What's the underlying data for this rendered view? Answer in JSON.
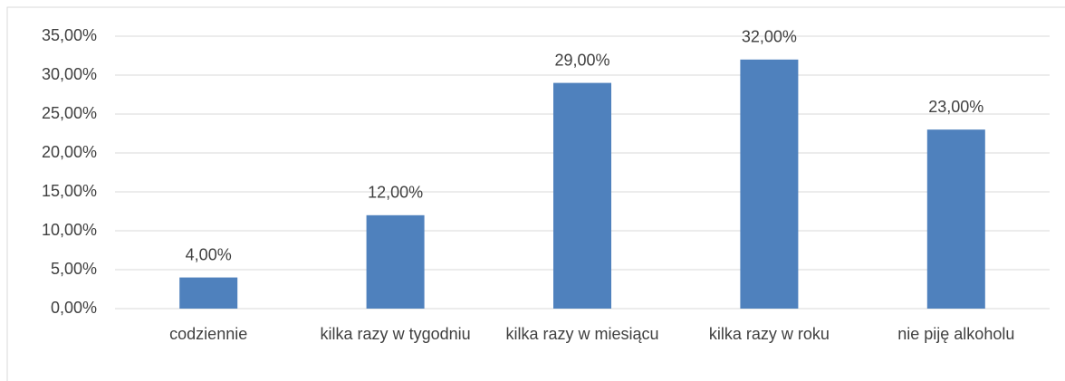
{
  "chart_data": {
    "type": "bar",
    "categories": [
      "codziennie",
      "kilka razy w tygodniu",
      "kilka razy w miesiącu",
      "kilka razy w roku",
      "nie piję alkoholu"
    ],
    "values": [
      4,
      12,
      29,
      32,
      23
    ],
    "value_labels": [
      "4,00%",
      "12,00%",
      "29,00%",
      "32,00%",
      "23,00%"
    ],
    "color": "#4f81bd",
    "ylim": [
      0,
      35
    ],
    "yticks": [
      {
        "value": 0,
        "label": "0,00%"
      },
      {
        "value": 5,
        "label": "5,00%"
      },
      {
        "value": 10,
        "label": "10,00%"
      },
      {
        "value": 15,
        "label": "15,00%"
      },
      {
        "value": 20,
        "label": "20,00%"
      },
      {
        "value": 25,
        "label": "25,00%"
      },
      {
        "value": 30,
        "label": "30,00%"
      },
      {
        "value": 35,
        "label": "35,00%"
      }
    ],
    "grid": true
  }
}
